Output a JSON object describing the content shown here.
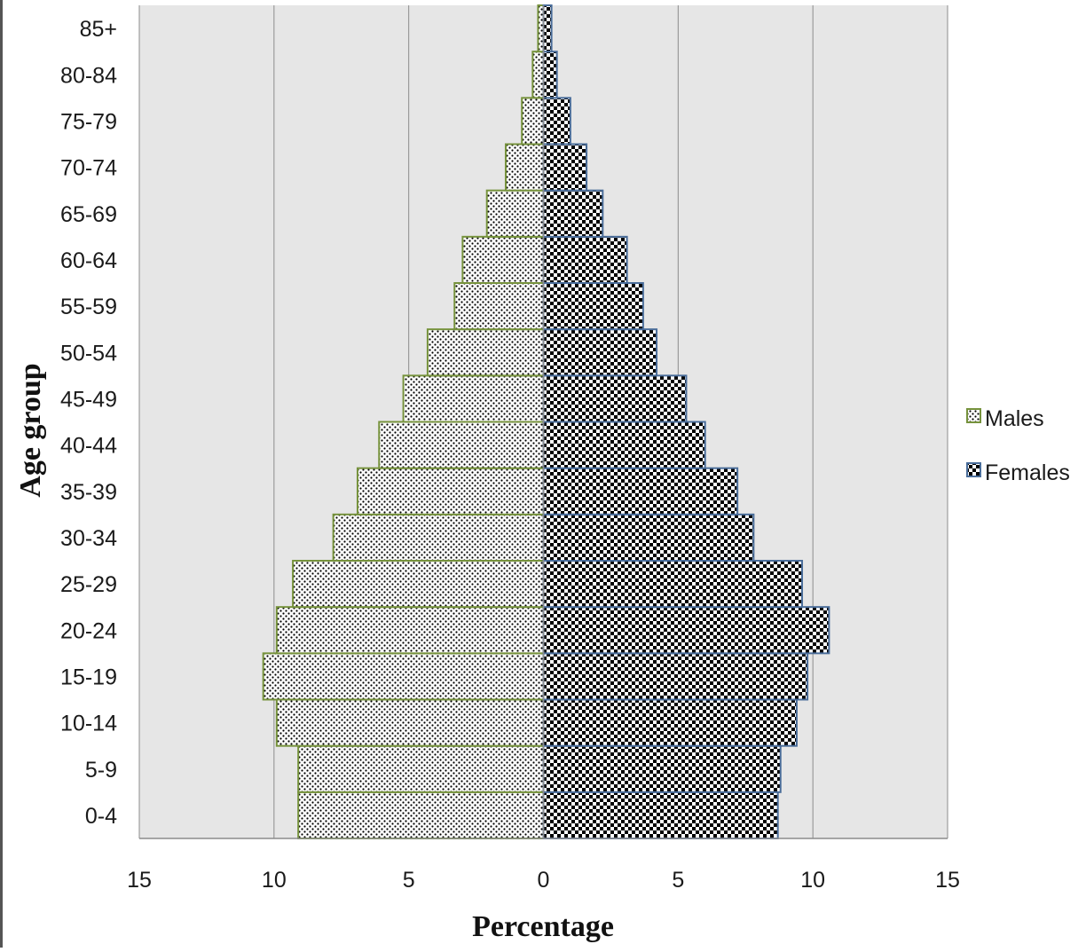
{
  "chart_data": {
    "type": "bar",
    "orientation": "horizontal",
    "layout": "population-pyramid",
    "categories": [
      "0-4",
      "5-9",
      "10-14",
      "15-19",
      "20-24",
      "25-29",
      "30-34",
      "35-39",
      "40-44",
      "45-49",
      "50-54",
      "55-59",
      "60-64",
      "65-69",
      "70-74",
      "75-79",
      "80-84",
      "85+"
    ],
    "series": [
      {
        "name": "Males",
        "color": "#76923c",
        "pattern": "dots",
        "direction": "left",
        "values": [
          9.1,
          9.1,
          9.9,
          10.4,
          9.9,
          9.3,
          7.8,
          6.9,
          6.1,
          5.2,
          4.3,
          3.3,
          3.0,
          2.1,
          1.4,
          0.8,
          0.4,
          0.2
        ]
      },
      {
        "name": "Females",
        "color": "#4a6d9a",
        "pattern": "checker",
        "direction": "right",
        "values": [
          8.7,
          8.8,
          9.4,
          9.8,
          10.6,
          9.6,
          7.8,
          7.2,
          6.0,
          5.3,
          4.2,
          3.7,
          3.1,
          2.2,
          1.6,
          1.0,
          0.5,
          0.3
        ]
      }
    ],
    "x_ticks": [
      "15",
      "10",
      "5",
      "0",
      "5",
      "10",
      "15"
    ],
    "xlim": [
      -15,
      15
    ],
    "xlabel": "Percentage",
    "ylabel": "Age group",
    "grid": "vertical",
    "legend_position": "right"
  }
}
